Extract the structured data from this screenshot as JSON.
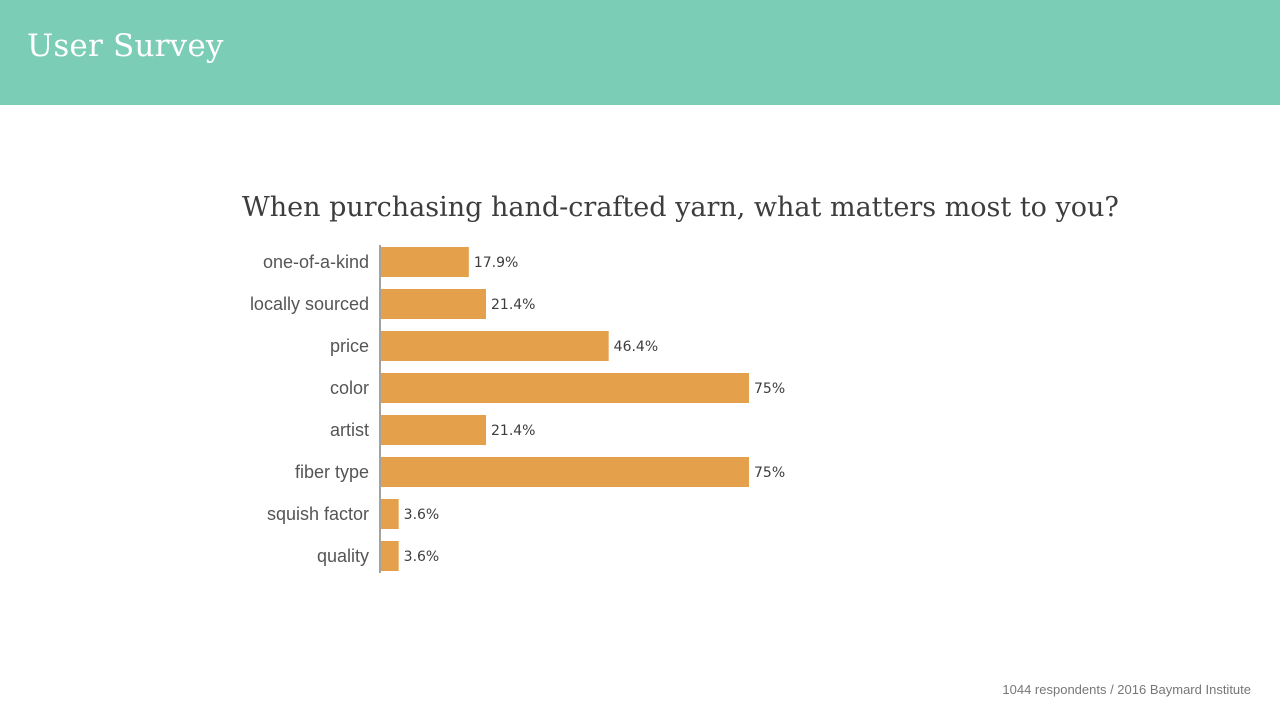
{
  "header": {
    "title": "User Survey"
  },
  "footer": {
    "source": "1044 respondents / 2016 Baymard Institute"
  },
  "colors": {
    "header_bg": "#7bcdb5",
    "bar": "#e4a04b",
    "axis": "#444444"
  },
  "chart_data": {
    "type": "bar",
    "orientation": "horizontal",
    "title": "When purchasing hand-crafted yarn, what matters most to you?",
    "categories": [
      "one-of-a-kind",
      "locally sourced",
      "price",
      "color",
      "artist",
      "fiber type",
      "squish factor",
      "quality"
    ],
    "values": [
      17.9,
      21.4,
      46.4,
      75,
      21.4,
      75,
      3.6,
      3.6
    ],
    "value_labels": [
      "17.9%",
      "21.4%",
      "46.4%",
      "75%",
      "21.4%",
      "75%",
      "3.6%",
      "3.6%"
    ],
    "xlim": [
      0,
      100
    ],
    "grid": false,
    "legend": "none"
  }
}
